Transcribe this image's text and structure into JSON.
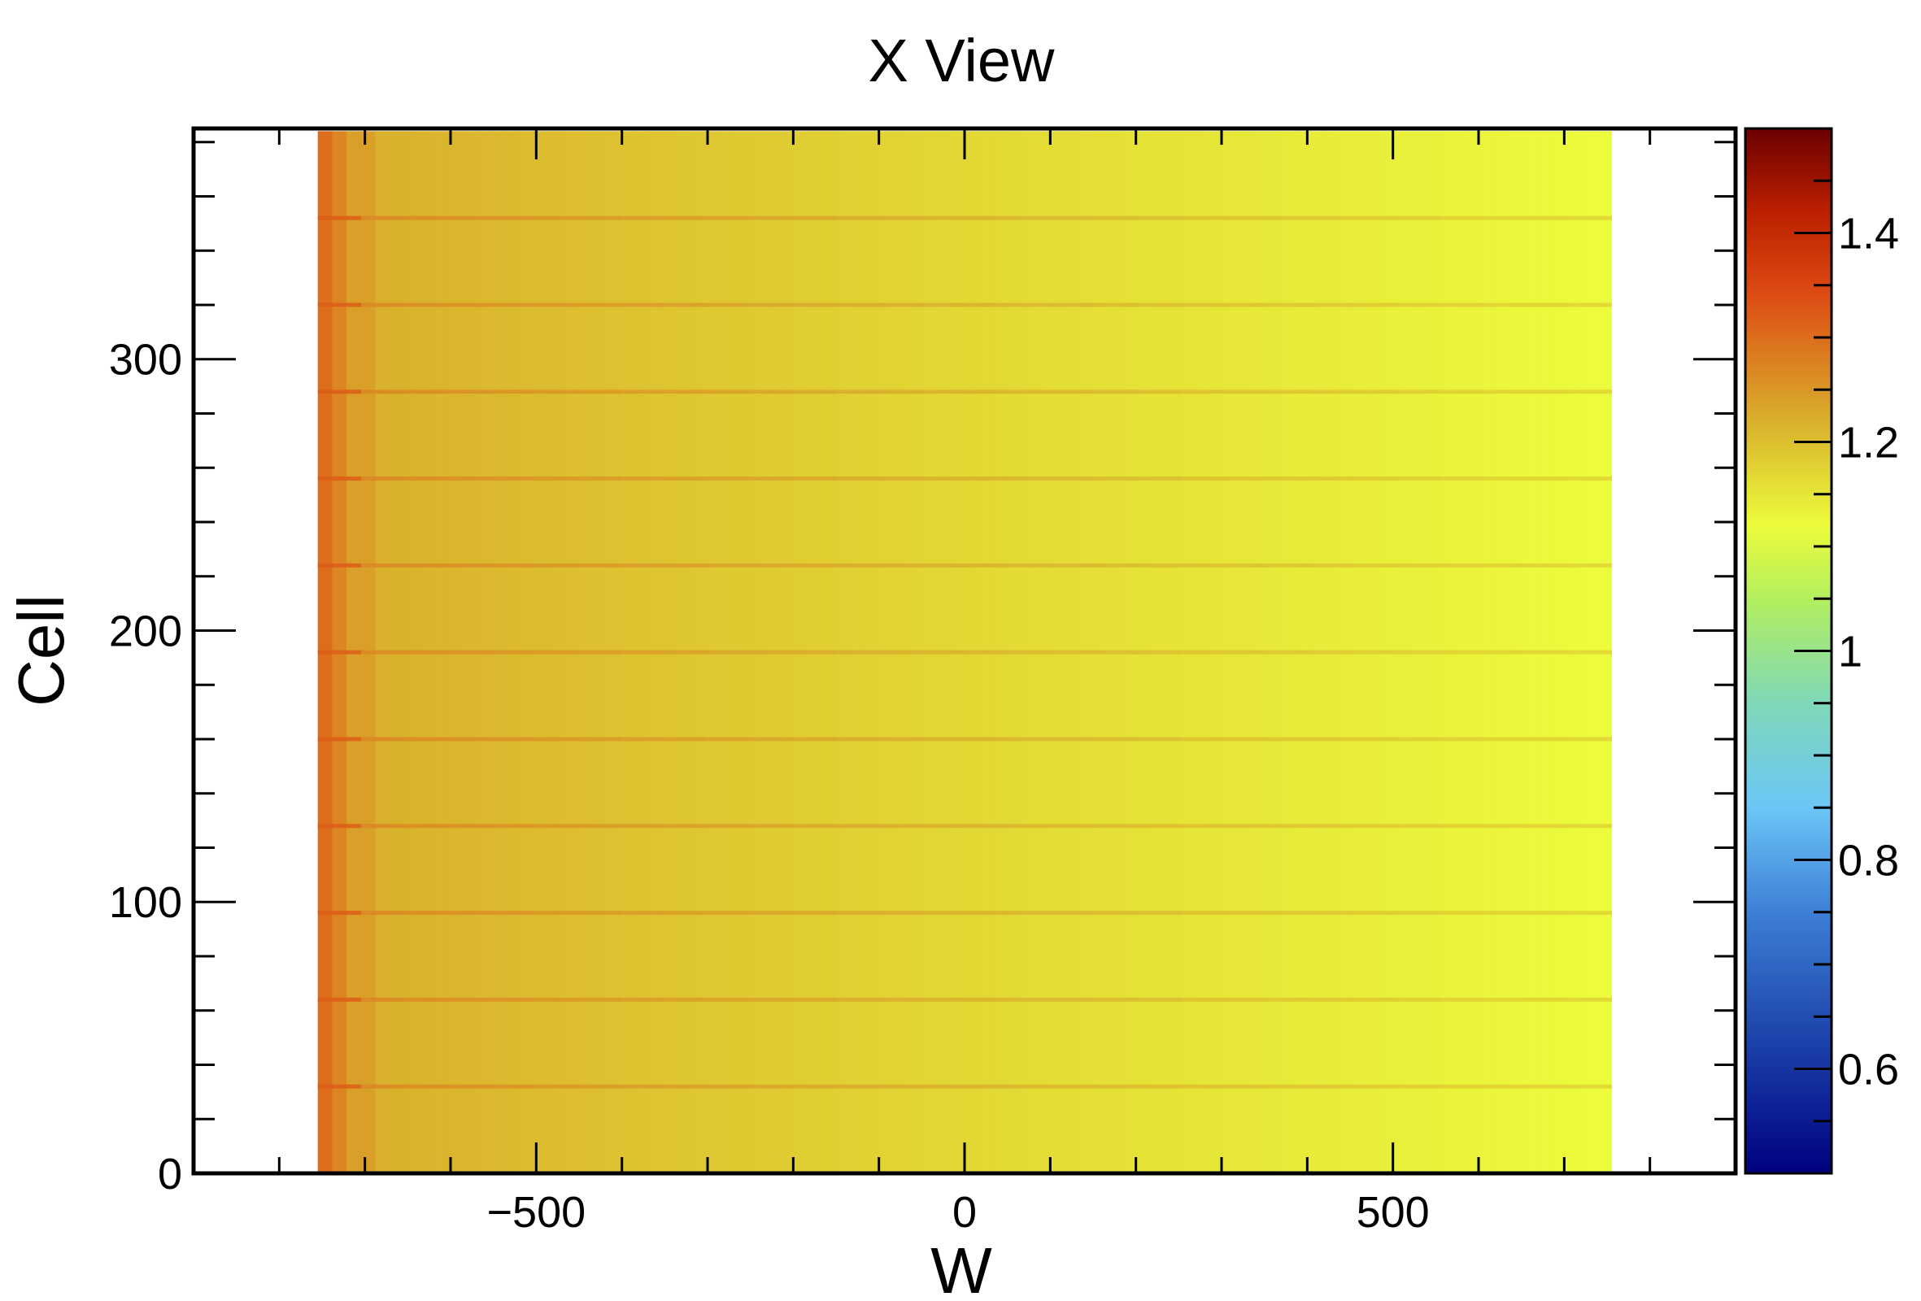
{
  "chart_data": {
    "type": "heatmap",
    "title": "X View",
    "xlabel": "W",
    "ylabel": "Cell",
    "xlim": [
      -900,
      900
    ],
    "ylim": [
      0,
      385
    ],
    "x_ticks": [
      -500,
      0,
      500
    ],
    "y_ticks": [
      0,
      100,
      200,
      300
    ],
    "z_range": [
      0.5,
      1.5
    ],
    "z_ticks": [
      0.6,
      0.8,
      1,
      1.2,
      1.4
    ],
    "colorscale": "rainbow",
    "grid": false,
    "data_extent": {
      "x": [
        -755,
        755
      ],
      "y": [
        0,
        384
      ]
    },
    "pattern": {
      "description_values": "response decreases from about 1.30 at W=-750 to about 1.12 at W=750; plane boundaries every 32 cells are elevated",
      "edge_value": 1.3,
      "near_left_value": 1.22,
      "right_value": 1.12,
      "boundary_cell_step": 32,
      "boundary_excess": 0.05
    }
  },
  "colorbar": {
    "ticks": [
      {
        "label": "1.4",
        "value": 1.4
      },
      {
        "label": "1.2",
        "value": 1.2
      },
      {
        "label": "1",
        "value": 1.0
      },
      {
        "label": "0.8",
        "value": 0.8
      },
      {
        "label": "0.6",
        "value": 0.6
      }
    ]
  },
  "axis": {
    "x_tick_labels": [
      "−500",
      "0",
      "500"
    ],
    "y_tick_labels": [
      "0",
      "100",
      "200",
      "300"
    ]
  }
}
